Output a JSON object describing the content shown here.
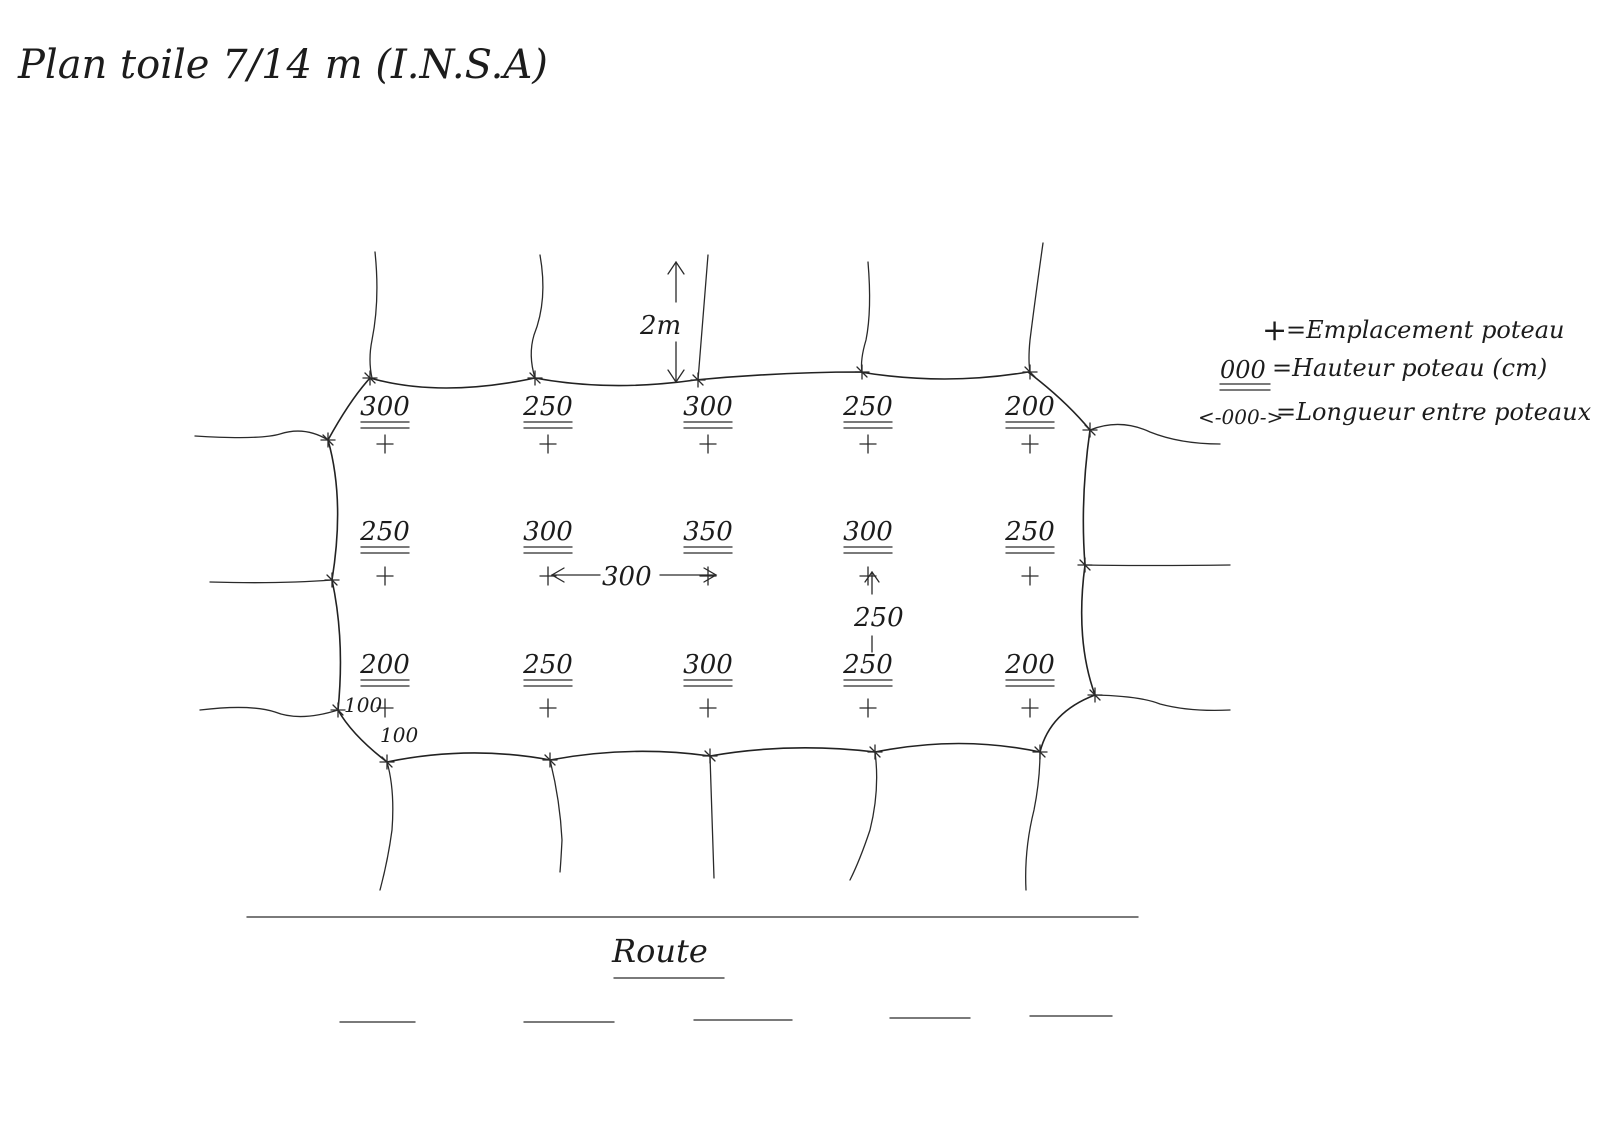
{
  "title": "Plan toile 7/14 m (I.N.S.A)",
  "legend": {
    "post_symbol": "+",
    "post_text": "=Emplacement poteau",
    "height_symbol": "000",
    "height_text": "=Hauteur poteau (cm)",
    "length_symbol": "<-000->",
    "length_text": "=Longueur entre poteaux"
  },
  "guy_length_label": "2m",
  "spacing_horizontal_label": "300",
  "spacing_vertical_label": "250",
  "corner_offset_left_label": "100",
  "corner_offset_bottom_label": "100",
  "road_label": "Route",
  "top_row": [
    "300",
    "250",
    "300",
    "250",
    "200"
  ],
  "middle_row": [
    "250",
    "300",
    "350",
    "300",
    "250"
  ],
  "bottom_row": [
    "200",
    "250",
    "300",
    "250",
    "200"
  ]
}
